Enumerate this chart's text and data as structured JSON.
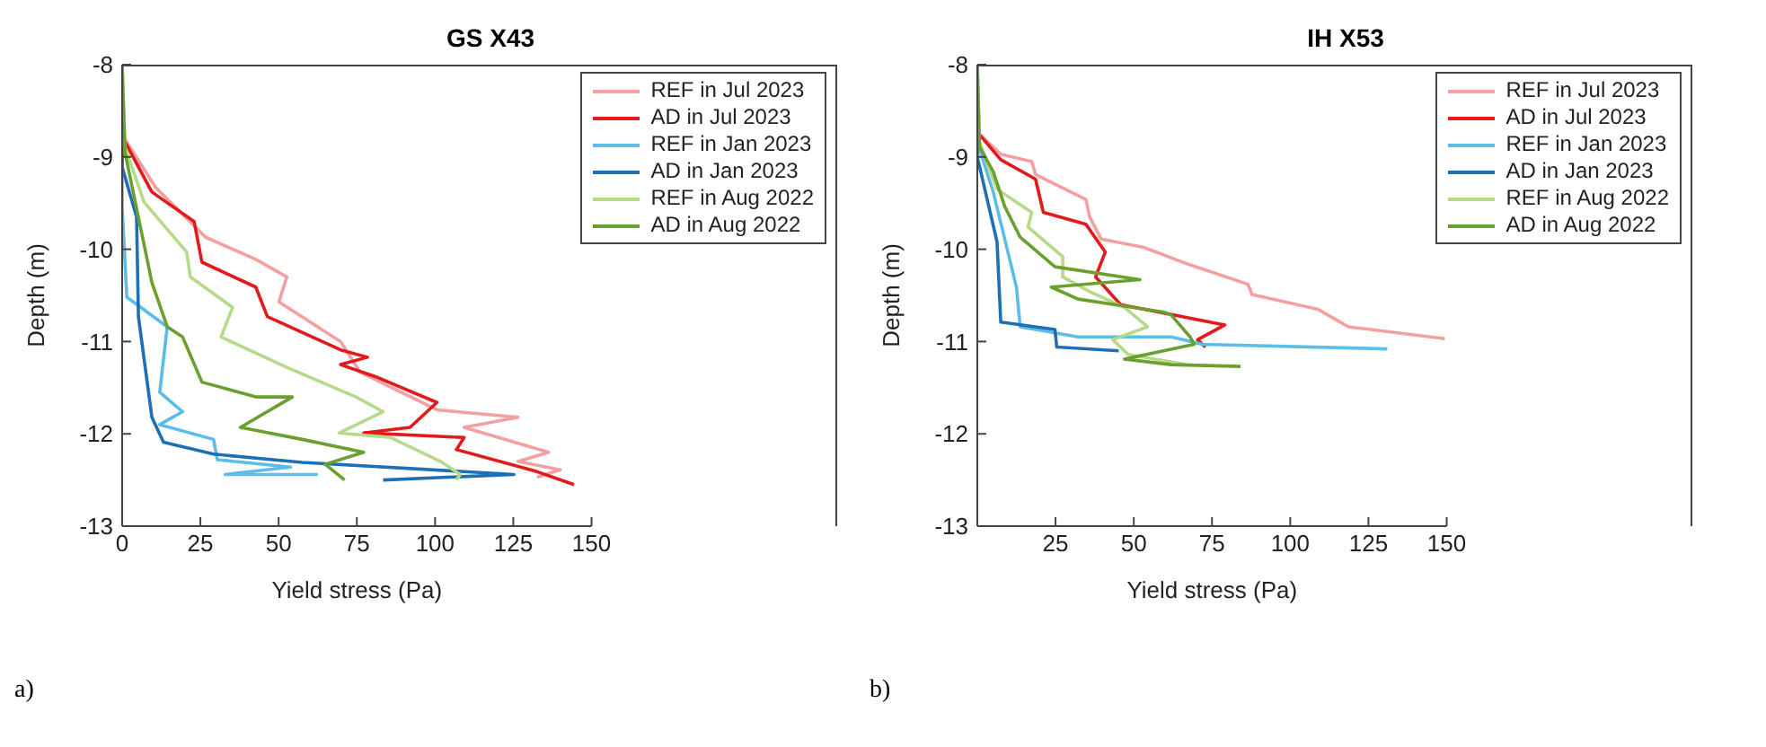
{
  "chart_data": [
    {
      "type": "line",
      "title": "GS X43",
      "xlabel": "Yield stress (Pa)",
      "ylabel": "Depth (m)",
      "xlim": [
        0,
        150
      ],
      "xticks": [
        0,
        25,
        50,
        75,
        100,
        125,
        150
      ],
      "ylim": [
        -13,
        -8
      ],
      "yticks": [
        -13,
        -12,
        -11,
        -10,
        -9,
        -8
      ],
      "legend": "top right",
      "grid": false,
      "marker": "none",
      "line_style": "solid",
      "annotations": [
        "a)"
      ],
      "series": [
        {
          "name": "REF in Jul 2023",
          "color": "#f4a0a0",
          "x": [
            0,
            0,
            10.7,
            26.7,
            42.7,
            52.6,
            50.1,
            69.8,
            76,
            100.6,
            126.5,
            109.3,
            136.3,
            126.5,
            140,
            132.6
          ],
          "values": [
            -8,
            -8.76,
            -9.33,
            -9.87,
            -10.11,
            -10.3,
            -10.57,
            -11.0,
            -11.33,
            -11.74,
            -11.82,
            -11.93,
            -12.2,
            -12.3,
            -12.39,
            -12.47
          ]
        },
        {
          "name": "AD in Jul 2023",
          "color": "#e31a1c",
          "x": [
            0,
            0,
            9.5,
            23,
            25.5,
            42.7,
            46.4,
            69.8,
            78.4,
            69.8,
            80.9,
            100.6,
            92,
            77.2,
            109.3,
            106.8,
            132.6,
            144.4
          ],
          "values": [
            -8,
            -8.78,
            -9.38,
            -9.7,
            -10.14,
            -10.41,
            -10.73,
            -11.09,
            -11.17,
            -11.25,
            -11.38,
            -11.66,
            -11.93,
            -11.99,
            -12.04,
            -12.17,
            -12.41,
            -12.55
          ]
        },
        {
          "name": "REF in Jan 2023",
          "color": "#5bbde8",
          "x": [
            0,
            0,
            1.5,
            14.4,
            12,
            19.3,
            12,
            29.2,
            30.4,
            53.8,
            32.9,
            62.5
          ],
          "values": [
            -8,
            -9.54,
            -10.52,
            -10.84,
            -11.55,
            -11.76,
            -11.9,
            -12.06,
            -12.28,
            -12.36,
            -12.44,
            -12.44
          ]
        },
        {
          "name": "AD in Jan 2023",
          "color": "#1f6fb4",
          "x": [
            0,
            0,
            4.6,
            5.2,
            9.5,
            13.2,
            29.2,
            57.5,
            125.2,
            83.4
          ],
          "values": [
            -8,
            -9.11,
            -9.65,
            -10.73,
            -11.82,
            -12.09,
            -12.22,
            -12.31,
            -12.44,
            -12.5
          ]
        },
        {
          "name": "REF in Aug 2022",
          "color": "#b5db88",
          "x": [
            0,
            0.9,
            7,
            20.6,
            21.8,
            35.3,
            31.6,
            52.6,
            74.7,
            83.4,
            69.4,
            85.8,
            101.8,
            108,
            106.8
          ],
          "values": [
            -8,
            -8.89,
            -9.49,
            -10.03,
            -10.3,
            -10.63,
            -10.95,
            -11.28,
            -11.6,
            -11.76,
            -11.99,
            -12.04,
            -12.3,
            -12.44,
            -12.5
          ]
        },
        {
          "name": "AD in Aug 2022",
          "color": "#6ba030",
          "x": [
            0,
            0.9,
            9.5,
            14.4,
            19.3,
            25.5,
            42.7,
            54.4,
            37.8,
            57.5,
            77.2,
            64.9,
            71.1
          ],
          "values": [
            -8,
            -8.95,
            -10.36,
            -10.84,
            -10.95,
            -11.44,
            -11.6,
            -11.6,
            -11.93,
            -12.06,
            -12.2,
            -12.33,
            -12.5
          ]
        }
      ]
    },
    {
      "type": "line",
      "title": "IH X53",
      "xlabel": "Yield stress (Pa)",
      "ylabel": "Depth (m)",
      "xlim": [
        0,
        150
      ],
      "xticks": [
        25,
        50,
        75,
        100,
        125,
        150
      ],
      "ylim": [
        -13,
        -8
      ],
      "yticks": [
        -13,
        -12,
        -11,
        -10,
        -9,
        -8
      ],
      "legend": "top right",
      "grid": false,
      "marker": "none",
      "line_style": "solid",
      "annotations": [
        "b)"
      ],
      "series": [
        {
          "name": "REF in Jul 2023",
          "color": "#f4a0a0",
          "x": [
            0,
            0,
            7.5,
            17.4,
            18.6,
            34.7,
            35.9,
            39.6,
            53.2,
            68,
            86.5,
            87.8,
            108.8,
            118.6,
            149.4
          ],
          "values": [
            -8,
            -8.73,
            -8.97,
            -9.05,
            -9.19,
            -9.46,
            -9.65,
            -9.89,
            -9.98,
            -10.17,
            -10.38,
            -10.49,
            -10.65,
            -10.84,
            -10.97
          ]
        },
        {
          "name": "AD in Jul 2023",
          "color": "#e31a1c",
          "x": [
            0,
            0,
            7.5,
            18.6,
            21.1,
            34.7,
            40.9,
            37.8,
            45.8,
            79.1,
            70.4,
            72.9
          ],
          "values": [
            -8,
            -8.73,
            -9.03,
            -9.24,
            -9.6,
            -9.73,
            -10.03,
            -10.3,
            -10.6,
            -10.82,
            -10.98,
            -11.06
          ]
        },
        {
          "name": "REF in Jan 2023",
          "color": "#5bbde8",
          "x": [
            0,
            0,
            5.1,
            12.5,
            13.7,
            32.2,
            62,
            71.9,
            131
          ],
          "values": [
            -8,
            -8.84,
            -9.38,
            -10.41,
            -10.84,
            -10.95,
            -10.95,
            -11.03,
            -11.08
          ]
        },
        {
          "name": "AD in Jan 2023",
          "color": "#1f6fb4",
          "x": [
            0,
            0,
            6.3,
            7.5,
            24.8,
            25.4,
            45.2
          ],
          "values": [
            -8,
            -9,
            -9.92,
            -10.79,
            -10.87,
            -11.06,
            -11.1
          ]
        },
        {
          "name": "REF in Aug 2022",
          "color": "#b5db88",
          "x": [
            0,
            0.7,
            6.3,
            17.4,
            16.2,
            27.3,
            27.3,
            35.9,
            47,
            54.4,
            43.3,
            48.2,
            66.8
          ],
          "values": [
            -8,
            -8.84,
            -9.35,
            -9.6,
            -9.76,
            -10.08,
            -10.3,
            -10.46,
            -10.63,
            -10.84,
            -10.98,
            -11.14,
            -11.25
          ]
        },
        {
          "name": "AD in Aug 2022",
          "color": "#6ba030",
          "x": [
            0,
            0.7,
            5.1,
            8.8,
            13.7,
            24.8,
            52,
            23.6,
            32.2,
            59.4,
            61.9,
            68,
            69.3,
            47,
            61.9,
            84.1
          ],
          "values": [
            -8,
            -8.89,
            -9.16,
            -9.54,
            -9.87,
            -10.19,
            -10.33,
            -10.41,
            -10.54,
            -10.68,
            -10.71,
            -10.95,
            -11.03,
            -11.19,
            -11.25,
            -11.27
          ]
        }
      ]
    }
  ]
}
